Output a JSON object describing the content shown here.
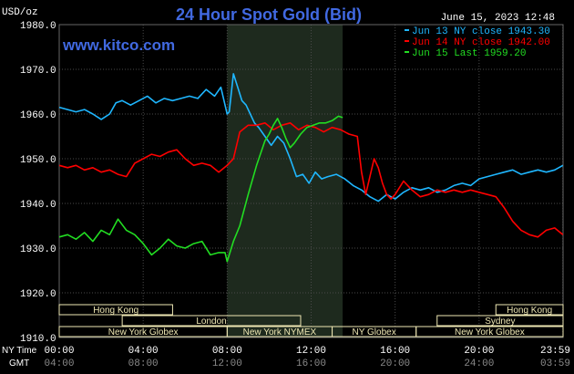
{
  "header": {
    "title": "24 Hour Spot Gold (Bid)",
    "unit": "USD/oz",
    "date": "June 15, 2023 12:48",
    "website": "www.kitco.com"
  },
  "colors": {
    "background": "#000000",
    "title": "#4169e1",
    "site": "#4169e1",
    "shade": "#1e2a1e",
    "grid": "#4a4a4a",
    "session_fill": "#eee7b3",
    "jun13": "#1fb7ff",
    "jun14": "#ff0000",
    "jun15": "#22dd22"
  },
  "sessions": [
    {
      "label": "Hong Kong",
      "start": 0.0,
      "end": 5.4
    },
    {
      "label": "Hong Kong",
      "start": 20.8,
      "end": 24.0
    },
    {
      "label": "London",
      "start": 3.0,
      "end": 11.5
    },
    {
      "label": "Sydney",
      "start": 18.0,
      "end": 24.0
    },
    {
      "label": "New York Globex",
      "start": 0.0,
      "end": 8.0
    },
    {
      "label": "New York NYMEX",
      "start": 8.0,
      "end": 13.0
    },
    {
      "label": "NY Globex",
      "start": 13.0,
      "end": 17.0
    },
    {
      "label": "New York Globex",
      "start": 17.0,
      "end": 24.0
    }
  ],
  "time_labels": {
    "ny_label": "NY Time",
    "gmt_label": "GMT",
    "ny_ticks": [
      "00:00",
      "04:00",
      "08:00",
      "12:00",
      "16:00",
      "20:00",
      "23:59"
    ],
    "gmt_ticks": [
      "04:00",
      "08:00",
      "12:00",
      "16:00",
      "20:00",
      "24:00",
      "03:59"
    ]
  },
  "chart_data": {
    "type": "line",
    "title": "24 Hour Spot Gold (Bid)",
    "ylabel": "USD/oz",
    "xlabel": "NY Time",
    "x_ticks": [
      "00:00",
      "04:00",
      "08:00",
      "12:00",
      "16:00",
      "20:00",
      "23:59"
    ],
    "y_ticks": [
      "1910.0",
      "1920.0",
      "1930.0",
      "1940.0",
      "1950.0",
      "1960.0",
      "1970.0",
      "1980.0"
    ],
    "ylim": [
      1910,
      1980
    ],
    "xlim": [
      0,
      24
    ],
    "grid": true,
    "legend_position": "top-right",
    "highlight_range": [
      8.0,
      13.5
    ],
    "series": [
      {
        "name": "Jun 13 NY close 1943.30",
        "x": [
          0,
          0.4,
          0.8,
          1.2,
          1.6,
          2.0,
          2.4,
          2.7,
          3.0,
          3.4,
          3.8,
          4.2,
          4.6,
          5.0,
          5.4,
          5.8,
          6.2,
          6.6,
          7.0,
          7.4,
          7.7,
          8.0,
          8.1,
          8.3,
          8.5,
          8.7,
          8.9,
          9.1,
          9.3,
          9.5,
          9.8,
          10.1,
          10.4,
          10.7,
          11.0,
          11.3,
          11.6,
          11.9,
          12.2,
          12.5,
          12.8,
          13.2,
          13.6,
          14.0,
          14.4,
          14.8,
          15.2,
          15.6,
          16.0,
          16.4,
          16.8,
          17.2,
          17.6,
          18.0,
          18.4,
          18.8,
          19.2,
          19.6,
          20.0,
          20.4,
          20.8,
          21.2,
          21.6,
          22.0,
          22.4,
          22.8,
          23.2,
          23.6,
          23.99
        ],
        "values": [
          1961.5,
          1961.0,
          1960.5,
          1961.0,
          1960.0,
          1958.8,
          1960.0,
          1962.5,
          1963.0,
          1962.0,
          1963.0,
          1964.0,
          1962.5,
          1963.5,
          1963.0,
          1963.5,
          1964.0,
          1963.5,
          1965.5,
          1964.0,
          1966.0,
          1960.0,
          1960.5,
          1969.0,
          1966.0,
          1963.0,
          1962.0,
          1960.0,
          1958.0,
          1957.0,
          1955.0,
          1953.0,
          1955.0,
          1953.5,
          1950.0,
          1946.0,
          1946.5,
          1944.5,
          1947.0,
          1945.5,
          1946.0,
          1946.5,
          1945.5,
          1944.0,
          1943.0,
          1941.5,
          1940.5,
          1942.0,
          1941.0,
          1942.5,
          1943.5,
          1943.0,
          1943.5,
          1942.5,
          1943.0,
          1944.0,
          1944.5,
          1944.0,
          1945.5,
          1946.0,
          1946.5,
          1947.0,
          1947.5,
          1946.5,
          1947.0,
          1947.5,
          1947.0,
          1947.5,
          1948.5
        ]
      },
      {
        "name": "Jun 14 NY close 1942.00",
        "x": [
          0,
          0.4,
          0.8,
          1.2,
          1.6,
          2.0,
          2.4,
          2.8,
          3.2,
          3.6,
          4.0,
          4.4,
          4.8,
          5.2,
          5.6,
          6.0,
          6.4,
          6.8,
          7.2,
          7.6,
          8.0,
          8.3,
          8.6,
          9.0,
          9.4,
          9.8,
          10.2,
          10.6,
          11.0,
          11.4,
          11.8,
          12.2,
          12.6,
          13.0,
          13.4,
          13.8,
          14.2,
          14.4,
          14.6,
          14.8,
          15.0,
          15.2,
          15.4,
          15.6,
          15.8,
          16.0,
          16.4,
          16.8,
          17.2,
          17.6,
          18.0,
          18.4,
          18.8,
          19.2,
          19.6,
          20.0,
          20.4,
          20.8,
          21.2,
          21.6,
          22.0,
          22.4,
          22.8,
          23.2,
          23.6,
          23.99
        ],
        "values": [
          1948.5,
          1948.0,
          1948.5,
          1947.5,
          1948.0,
          1947.0,
          1947.5,
          1946.5,
          1946.0,
          1949.0,
          1950.0,
          1951.0,
          1950.5,
          1951.5,
          1952.0,
          1950.0,
          1948.5,
          1949.0,
          1948.5,
          1947.0,
          1948.5,
          1950.0,
          1956.0,
          1957.5,
          1957.5,
          1958.0,
          1956.5,
          1957.5,
          1958.0,
          1956.5,
          1957.5,
          1957.0,
          1956.0,
          1957.0,
          1956.5,
          1955.5,
          1955.0,
          1947.0,
          1942.0,
          1946.0,
          1950.0,
          1948.0,
          1944.5,
          1942.0,
          1941.0,
          1942.0,
          1945.0,
          1943.0,
          1941.5,
          1942.0,
          1943.0,
          1942.5,
          1943.0,
          1942.5,
          1943.0,
          1942.5,
          1942.0,
          1941.5,
          1939.0,
          1936.0,
          1934.0,
          1933.0,
          1932.5,
          1934.0,
          1934.5,
          1933.0
        ]
      },
      {
        "name": "Jun 15 Last 1959.20",
        "x": [
          0,
          0.4,
          0.8,
          1.2,
          1.6,
          2.0,
          2.4,
          2.8,
          3.2,
          3.6,
          4.0,
          4.4,
          4.8,
          5.2,
          5.6,
          6.0,
          6.4,
          6.8,
          7.2,
          7.6,
          7.9,
          8.0,
          8.1,
          8.3,
          8.6,
          9.0,
          9.4,
          9.8,
          10.0,
          10.2,
          10.4,
          10.6,
          10.8,
          11.0,
          11.2,
          11.5,
          11.8,
          12.1,
          12.4,
          12.7,
          13.0,
          13.3,
          13.5
        ],
        "values": [
          1932.5,
          1933.0,
          1932.0,
          1933.5,
          1931.5,
          1934.0,
          1933.0,
          1936.5,
          1934.0,
          1933.0,
          1931.0,
          1928.5,
          1930.0,
          1932.0,
          1930.5,
          1930.0,
          1931.0,
          1931.5,
          1928.5,
          1929.0,
          1929.0,
          1927.0,
          1928.5,
          1931.5,
          1935.0,
          1942.0,
          1948.5,
          1954.0,
          1955.5,
          1957.5,
          1959.0,
          1957.0,
          1954.5,
          1952.5,
          1953.5,
          1955.5,
          1957.0,
          1957.5,
          1958.0,
          1958.0,
          1958.5,
          1959.5,
          1959.2
        ]
      }
    ]
  }
}
